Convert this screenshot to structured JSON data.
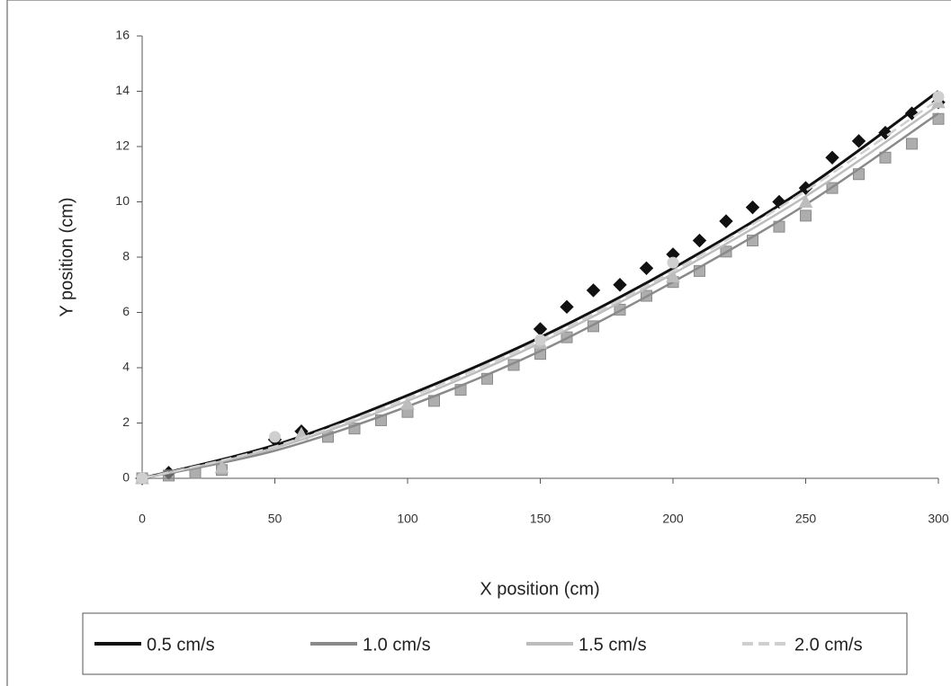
{
  "chart_data": {
    "type": "scatter",
    "x_label": "X position (cm)",
    "y_label": "Y position (cm)",
    "xlim": [
      0,
      300
    ],
    "xticks": [
      0,
      50,
      100,
      150,
      200,
      250,
      300
    ],
    "ylim": [
      0,
      16
    ],
    "yticks": [
      0,
      2,
      4,
      6,
      8,
      10,
      12,
      14,
      16
    ],
    "grid": false,
    "fit_x": [
      0,
      50,
      100,
      150,
      200,
      250,
      300
    ],
    "series": [
      {
        "name": "0.5 cm/s",
        "color": "#111111",
        "marker": "diamond",
        "dash": false,
        "x": [
          0,
          10,
          50,
          60,
          150,
          160,
          170,
          180,
          190,
          200,
          210,
          220,
          230,
          240,
          250,
          260,
          270,
          280,
          290,
          300
        ],
        "values": [
          0,
          0.2,
          1.4,
          1.7,
          5.4,
          6.2,
          6.8,
          7.0,
          7.6,
          8.1,
          8.6,
          9.3,
          9.8,
          10.0,
          10.5,
          11.6,
          12.2,
          12.5,
          13.2,
          13.6
        ],
        "fit": [
          0,
          1.2,
          3.0,
          5.1,
          7.6,
          10.5,
          14.0
        ]
      },
      {
        "name": "1.0 cm/s",
        "color": "#8a8a8a",
        "marker": "square",
        "dash": false,
        "x": [
          0,
          10,
          20,
          30,
          70,
          80,
          90,
          100,
          110,
          120,
          130,
          140,
          150,
          160,
          170,
          180,
          190,
          200,
          210,
          220,
          230,
          240,
          250,
          260,
          270,
          280,
          290,
          300
        ],
        "values": [
          0,
          0.1,
          0.2,
          0.3,
          1.5,
          1.8,
          2.1,
          2.4,
          2.8,
          3.2,
          3.6,
          4.1,
          4.5,
          5.1,
          5.5,
          6.1,
          6.6,
          7.1,
          7.5,
          8.2,
          8.6,
          9.1,
          9.5,
          10.5,
          11.0,
          11.6,
          12.1,
          13.0
        ],
        "fit": [
          0,
          1.0,
          2.6,
          4.6,
          7.1,
          9.9,
          13.2
        ]
      },
      {
        "name": "1.5 cm/s",
        "color": "#bdbdbd",
        "marker": "triangle",
        "dash": false,
        "x": [
          0,
          30,
          60,
          100,
          150,
          200,
          250,
          300
        ],
        "values": [
          0,
          0.4,
          1.6,
          2.7,
          4.9,
          7.3,
          10.0,
          13.6
        ],
        "fit": [
          0,
          1.1,
          2.8,
          4.9,
          7.4,
          10.2,
          13.5
        ]
      },
      {
        "name": "2.0 cm/s",
        "color": "#cfcfcf",
        "marker": "circle",
        "dash": true,
        "x": [
          0,
          50,
          150,
          200,
          300
        ],
        "values": [
          0,
          1.5,
          5.0,
          7.8,
          13.8
        ],
        "fit": [
          0,
          1.15,
          2.9,
          5.0,
          7.5,
          10.4,
          13.7
        ]
      }
    ]
  }
}
